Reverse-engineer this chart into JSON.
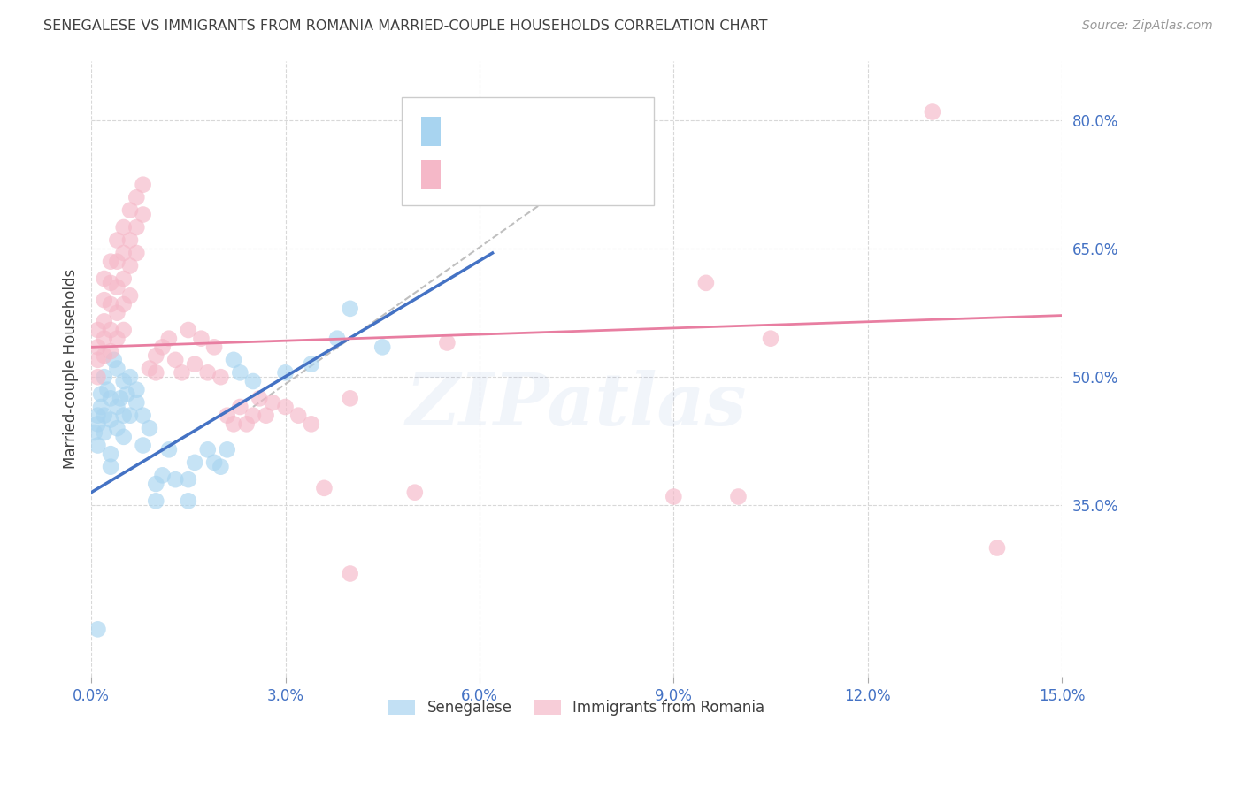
{
  "title": "SENEGALESE VS IMMIGRANTS FROM ROMANIA MARRIED-COUPLE HOUSEHOLDS CORRELATION CHART",
  "source": "Source: ZipAtlas.com",
  "ylabel": "Married-couple Households",
  "xlim": [
    0.0,
    0.15
  ],
  "ylim": [
    0.15,
    0.87
  ],
  "xticks": [
    0.0,
    0.03,
    0.06,
    0.09,
    0.12,
    0.15
  ],
  "yticks_right": [
    0.35,
    0.5,
    0.65,
    0.8
  ],
  "ytick_labels_right": [
    "35.0%",
    "50.0%",
    "65.0%",
    "80.0%"
  ],
  "xtick_labels": [
    "0.0%",
    "3.0%",
    "6.0%",
    "9.0%",
    "12.0%",
    "15.0%"
  ],
  "senegalese_color": "#a8d4f0",
  "romania_color": "#f5b8c8",
  "blue_line_color": "#4472c4",
  "pink_line_color": "#e87ea1",
  "diagonal_color": "#b8b8b8",
  "background_color": "#ffffff",
  "grid_color": "#d8d8d8",
  "axis_label_color": "#4472c4",
  "title_color": "#404040",
  "watermark": "ZIPatlas",
  "blue_line_x": [
    0.0,
    0.062
  ],
  "blue_line_y": [
    0.365,
    0.645
  ],
  "pink_line_x": [
    0.0,
    0.15
  ],
  "pink_line_y": [
    0.535,
    0.572
  ],
  "diag_line_x": [
    0.025,
    0.085
  ],
  "diag_line_y": [
    0.465,
    0.785
  ],
  "senegalese_points": [
    [
      0.0005,
      0.435
    ],
    [
      0.001,
      0.455
    ],
    [
      0.001,
      0.42
    ],
    [
      0.001,
      0.445
    ],
    [
      0.0015,
      0.48
    ],
    [
      0.0015,
      0.465
    ],
    [
      0.002,
      0.5
    ],
    [
      0.002,
      0.435
    ],
    [
      0.002,
      0.455
    ],
    [
      0.0025,
      0.485
    ],
    [
      0.003,
      0.475
    ],
    [
      0.003,
      0.45
    ],
    [
      0.003,
      0.41
    ],
    [
      0.003,
      0.395
    ],
    [
      0.0035,
      0.52
    ],
    [
      0.004,
      0.51
    ],
    [
      0.004,
      0.465
    ],
    [
      0.004,
      0.44
    ],
    [
      0.0045,
      0.475
    ],
    [
      0.005,
      0.495
    ],
    [
      0.005,
      0.455
    ],
    [
      0.005,
      0.43
    ],
    [
      0.0055,
      0.48
    ],
    [
      0.006,
      0.5
    ],
    [
      0.006,
      0.455
    ],
    [
      0.007,
      0.47
    ],
    [
      0.007,
      0.485
    ],
    [
      0.008,
      0.455
    ],
    [
      0.008,
      0.42
    ],
    [
      0.009,
      0.44
    ],
    [
      0.01,
      0.375
    ],
    [
      0.01,
      0.355
    ],
    [
      0.011,
      0.385
    ],
    [
      0.012,
      0.415
    ],
    [
      0.013,
      0.38
    ],
    [
      0.015,
      0.355
    ],
    [
      0.015,
      0.38
    ],
    [
      0.016,
      0.4
    ],
    [
      0.018,
      0.415
    ],
    [
      0.019,
      0.4
    ],
    [
      0.02,
      0.395
    ],
    [
      0.021,
      0.415
    ],
    [
      0.022,
      0.52
    ],
    [
      0.023,
      0.505
    ],
    [
      0.025,
      0.495
    ],
    [
      0.03,
      0.505
    ],
    [
      0.034,
      0.515
    ],
    [
      0.038,
      0.545
    ],
    [
      0.04,
      0.58
    ],
    [
      0.045,
      0.535
    ],
    [
      0.001,
      0.205
    ]
  ],
  "romania_points": [
    [
      0.001,
      0.555
    ],
    [
      0.001,
      0.535
    ],
    [
      0.001,
      0.52
    ],
    [
      0.001,
      0.5
    ],
    [
      0.002,
      0.615
    ],
    [
      0.002,
      0.59
    ],
    [
      0.002,
      0.565
    ],
    [
      0.002,
      0.545
    ],
    [
      0.002,
      0.525
    ],
    [
      0.003,
      0.635
    ],
    [
      0.003,
      0.61
    ],
    [
      0.003,
      0.585
    ],
    [
      0.003,
      0.555
    ],
    [
      0.003,
      0.53
    ],
    [
      0.004,
      0.66
    ],
    [
      0.004,
      0.635
    ],
    [
      0.004,
      0.605
    ],
    [
      0.004,
      0.575
    ],
    [
      0.004,
      0.545
    ],
    [
      0.005,
      0.675
    ],
    [
      0.005,
      0.645
    ],
    [
      0.005,
      0.615
    ],
    [
      0.005,
      0.585
    ],
    [
      0.005,
      0.555
    ],
    [
      0.006,
      0.695
    ],
    [
      0.006,
      0.66
    ],
    [
      0.006,
      0.63
    ],
    [
      0.006,
      0.595
    ],
    [
      0.007,
      0.71
    ],
    [
      0.007,
      0.675
    ],
    [
      0.007,
      0.645
    ],
    [
      0.008,
      0.725
    ],
    [
      0.008,
      0.69
    ],
    [
      0.009,
      0.51
    ],
    [
      0.01,
      0.505
    ],
    [
      0.01,
      0.525
    ],
    [
      0.011,
      0.535
    ],
    [
      0.012,
      0.545
    ],
    [
      0.013,
      0.52
    ],
    [
      0.014,
      0.505
    ],
    [
      0.015,
      0.555
    ],
    [
      0.016,
      0.515
    ],
    [
      0.017,
      0.545
    ],
    [
      0.018,
      0.505
    ],
    [
      0.019,
      0.535
    ],
    [
      0.02,
      0.5
    ],
    [
      0.021,
      0.455
    ],
    [
      0.022,
      0.445
    ],
    [
      0.023,
      0.465
    ],
    [
      0.024,
      0.445
    ],
    [
      0.025,
      0.455
    ],
    [
      0.026,
      0.475
    ],
    [
      0.027,
      0.455
    ],
    [
      0.028,
      0.47
    ],
    [
      0.03,
      0.465
    ],
    [
      0.032,
      0.455
    ],
    [
      0.034,
      0.445
    ],
    [
      0.036,
      0.37
    ],
    [
      0.05,
      0.365
    ],
    [
      0.04,
      0.475
    ],
    [
      0.04,
      0.27
    ],
    [
      0.095,
      0.61
    ],
    [
      0.1,
      0.36
    ],
    [
      0.105,
      0.545
    ],
    [
      0.13,
      0.81
    ],
    [
      0.14,
      0.3
    ],
    [
      0.09,
      0.36
    ],
    [
      0.055,
      0.54
    ]
  ]
}
